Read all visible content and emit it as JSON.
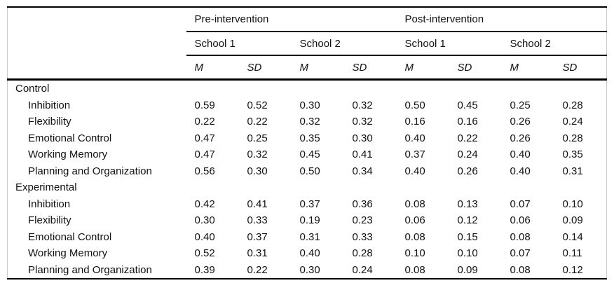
{
  "table": {
    "col_groups": [
      "Pre-intervention",
      "Post-intervention"
    ],
    "school_headers": [
      "School 1",
      "School 2",
      "School 1",
      "School 2"
    ],
    "stat_headers": [
      "M",
      "SD",
      "M",
      "SD",
      "M",
      "SD",
      "M",
      "SD"
    ],
    "rows": [
      {
        "label": "Control",
        "type": "group",
        "values": []
      },
      {
        "label": "Inhibition",
        "type": "item",
        "values": [
          "0.59",
          "0.52",
          "0.30",
          "0.32",
          "0.50",
          "0.45",
          "0.25",
          "0.28"
        ]
      },
      {
        "label": "Flexibility",
        "type": "item",
        "values": [
          "0.22",
          "0.22",
          "0.32",
          "0.32",
          "0.16",
          "0.16",
          "0.26",
          "0.24"
        ]
      },
      {
        "label": "Emotional Control",
        "type": "item",
        "values": [
          "0.47",
          "0.25",
          "0.35",
          "0.30",
          "0.40",
          "0.22",
          "0.26",
          "0.28"
        ]
      },
      {
        "label": "Working Memory",
        "type": "item",
        "values": [
          "0.47",
          "0.32",
          "0.45",
          "0.41",
          "0.37",
          "0.24",
          "0.40",
          "0.35"
        ]
      },
      {
        "label": "Planning and Organization",
        "type": "item",
        "values": [
          "0.56",
          "0.30",
          "0.50",
          "0.34",
          "0.40",
          "0.26",
          "0.40",
          "0.31"
        ]
      },
      {
        "label": "Experimental",
        "type": "group",
        "values": []
      },
      {
        "label": "Inhibition",
        "type": "item",
        "values": [
          "0.42",
          "0.41",
          "0.37",
          "0.36",
          "0.08",
          "0.13",
          "0.07",
          "0.10"
        ]
      },
      {
        "label": "Flexibility",
        "type": "item",
        "values": [
          "0.30",
          "0.33",
          "0.19",
          "0.23",
          "0.06",
          "0.12",
          "0.06",
          "0.09"
        ]
      },
      {
        "label": "Emotional Control",
        "type": "item",
        "values": [
          "0.40",
          "0.37",
          "0.31",
          "0.33",
          "0.08",
          "0.15",
          "0.08",
          "0.14"
        ]
      },
      {
        "label": "Working Memory",
        "type": "item",
        "values": [
          "0.52",
          "0.31",
          "0.40",
          "0.28",
          "0.10",
          "0.10",
          "0.07",
          "0.11"
        ]
      },
      {
        "label": "Planning and Organization",
        "type": "item",
        "values": [
          "0.39",
          "0.22",
          "0.30",
          "0.24",
          "0.08",
          "0.09",
          "0.08",
          "0.12"
        ]
      }
    ],
    "colors": {
      "rule": "#000000",
      "side_border": "#cccccc",
      "text": "#111111",
      "background": "#ffffff"
    }
  }
}
